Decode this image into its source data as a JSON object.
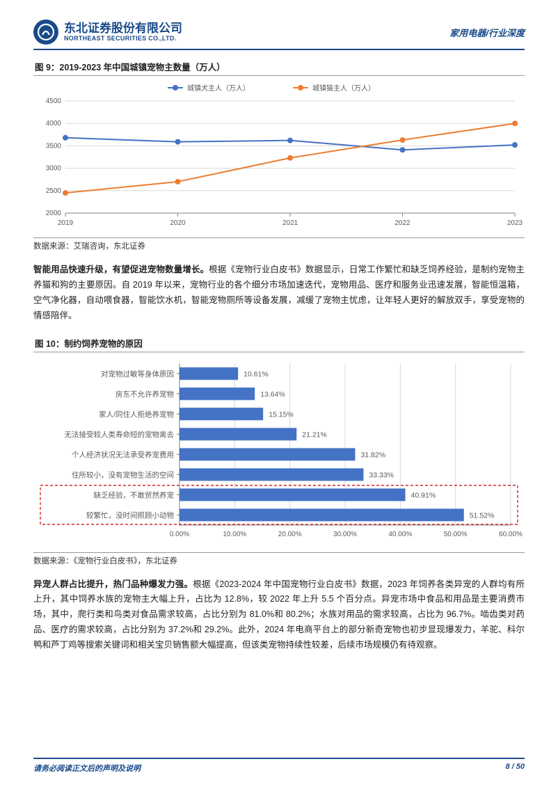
{
  "header": {
    "company_cn": "东北证券股份有限公司",
    "company_en": "NORTHEAST SECURITIES CO.,LTD.",
    "right_label": "家用电器/行业深度"
  },
  "fig9": {
    "title": "图 9：2019-2023 年中国城镇宠物主数量（万人）",
    "source": "数据来源：艾瑞咨询，东北证券",
    "type": "line",
    "legend": [
      "城镇犬主人（万人）",
      "城镇猫主人（万人）"
    ],
    "legend_colors": [
      "#4472c4",
      "#ed7d31"
    ],
    "x_labels": [
      "2019",
      "2020",
      "2021",
      "2022",
      "2023"
    ],
    "y_ticks": [
      2000,
      2500,
      3000,
      3500,
      4000,
      4500
    ],
    "ylim": [
      2000,
      4500
    ],
    "series": [
      {
        "name": "dog",
        "color": "#4472c4",
        "values": [
          3680,
          3590,
          3620,
          3410,
          3520
        ]
      },
      {
        "name": "cat",
        "color": "#ed7d31",
        "values": [
          2450,
          2700,
          3230,
          3630,
          4000
        ]
      }
    ],
    "marker": "circle",
    "grid_color": "#d9d9d9",
    "axis_color": "#808080",
    "background_color": "#ffffff",
    "label_fontsize": 10
  },
  "para1": {
    "lead": "智能用品快速升级，有望促进宠物数量增长。",
    "rest": "根据《宠物行业白皮书》数据显示，日常工作繁忙和缺乏饲养经验，是制约宠物主养猫和狗的主要原因。自 2019 年以来，宠物行业的各个细分市场加速迭代，宠物用品、医疗和服务业迅速发展，智能恒温箱，空气净化器，自动喂食器，智能饮水机，智能宠物厕所等设备发展，减缓了宠物主忧虑，让年轻人更好的解放双手，享受宠物的情感陪伴。"
  },
  "fig10": {
    "title": "图 10：制约饲养宠物的原因",
    "source": "数据来源：《宠物行业白皮书》，东北证券",
    "type": "bar_horizontal",
    "categories": [
      "对宠物过敏等身体原因",
      "房东不允许养宠物",
      "家人/同住人拒绝养宠物",
      "无法接受较人类寿命短的宠物离去",
      "个人经济状况无法承受养宠费用",
      "住所较小，没有宠物生活的空间",
      "缺乏经验，不敢贸然养宠",
      "较繁忙，没时间照顾小动物"
    ],
    "values": [
      10.61,
      13.64,
      15.15,
      21.21,
      31.82,
      33.33,
      40.91,
      51.52
    ],
    "value_labels": [
      "10.61%",
      "13.64%",
      "15.15%",
      "21.21%",
      "31.82%",
      "33.33%",
      "40.91%",
      "51.52%"
    ],
    "bar_color": "#4472c4",
    "x_ticks": [
      0,
      10,
      20,
      30,
      40,
      50,
      60
    ],
    "x_tick_labels": [
      "0.00%",
      "10.00%",
      "20.00%",
      "30.00%",
      "40.00%",
      "50.00%",
      "60.00%"
    ],
    "xlim": [
      0,
      60
    ],
    "highlight_rows": [
      6,
      7
    ],
    "highlight_border_color": "#d62728",
    "grid_color": "#d9d9d9",
    "axis_color": "#808080",
    "label_fontsize": 10
  },
  "para2": {
    "lead": "异宠人群占比提升，热门品种爆发力强。",
    "rest": "根据《2023-2024 年中国宠物行业白皮书》数据，2023 年饲养各类异宠的人群均有所上升，其中饲养水族的宠物主大幅上升，占比为 12.8%，较 2022 年上升 5.5 个百分点。异宠市场中食品和用品是主要消费市场，其中，爬行类和鸟类对食品需求较高，占比分别为 81.0%和 80.2%；水族对用品的需求较高，占比为 96.7%。啮齿类对药品、医疗的需求较高，占比分别为 37.2%和 29.2%。此外，2024 年电商平台上的部分新奇宠物也初步显现爆发力，羊驼、科尔鸭和芦丁鸡等搜索关键词和相关宝贝销售额大幅提高，但该类宠物持续性较差，后续市场规模仍有待观察。"
  },
  "footer": {
    "left": "请务必阅读正文后的声明及说明",
    "right": "8 / 50"
  }
}
